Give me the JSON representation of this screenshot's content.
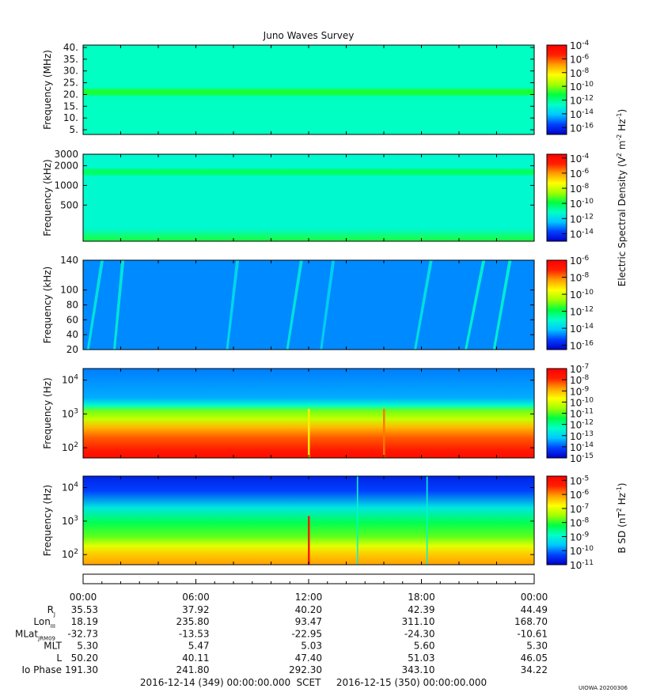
{
  "title": "Juno Waves Survey",
  "version_stamp": "UIOWA 20200306",
  "colors": {
    "cmap": [
      "#0000c8",
      "#0040ff",
      "#00c8ff",
      "#00ffc8",
      "#00ff40",
      "#a0ff00",
      "#ffff00",
      "#ffa000",
      "#ff2000",
      "#ff0000"
    ]
  },
  "shared_colorbar_label": "Electric Spectral Density (V^2 m^-2 Hz^-1)",
  "chart_data": [
    {
      "type": "heatmap",
      "panel": "HFR high band",
      "ylabel": "Frequency (MHz)",
      "y_scale": "linear",
      "ylim": [
        3,
        41
      ],
      "yticks": [
        "40.",
        "35.",
        "30.",
        "25.",
        "20.",
        "15.",
        "10.",
        "5."
      ],
      "ytick_values": [
        40,
        35,
        30,
        25,
        20,
        15,
        10,
        5
      ],
      "colorbar_ticks": [
        "10^-4",
        "10^-6",
        "10^-8",
        "10^-10",
        "10^-12",
        "10^-14",
        "10^-16"
      ],
      "colorbar_range": [
        -17,
        -4
      ],
      "background_level": -12.6,
      "features": [
        {
          "kind": "band",
          "freq": 21,
          "level": -11
        }
      ]
    },
    {
      "type": "heatmap",
      "panel": "HFR low band",
      "ylabel": "Frequency (kHz)",
      "y_scale": "log",
      "ylim": [
        140,
        3000
      ],
      "yticks": [
        "3000",
        "2000",
        "1000",
        "500"
      ],
      "ytick_values": [
        3000,
        2000,
        1000,
        500
      ],
      "colorbar_ticks": [
        "10^-4",
        "10^-6",
        "10^-8",
        "10^-10",
        "10^-12",
        "10^-14"
      ],
      "colorbar_range": [
        -15,
        -3.5
      ],
      "background_level": -11.3,
      "features": [
        {
          "kind": "band",
          "freq": 1600,
          "level": -10.2
        },
        {
          "kind": "floor",
          "below_freq": 220,
          "level": -9.7
        }
      ]
    },
    {
      "type": "heatmap",
      "panel": "LFR high",
      "ylabel": "Frequency (kHz)",
      "y_scale": "linear",
      "ylim": [
        20,
        140
      ],
      "yticks": [
        "140",
        "100",
        "80",
        "60",
        "40",
        "20"
      ],
      "ytick_values": [
        140,
        100,
        80,
        60,
        40,
        20
      ],
      "colorbar_ticks": [
        "10^-6",
        "10^-8",
        "10^-10",
        "10^-12",
        "10^-14",
        "10^-16"
      ],
      "colorbar_range": [
        -16.5,
        -6
      ],
      "background_level": -14.7,
      "features": [
        {
          "kind": "streak",
          "t_start_h": 0.2,
          "t_end_h": 1.1,
          "level": -13.3
        },
        {
          "kind": "streak",
          "t_start_h": 1.6,
          "t_end_h": 2.2,
          "level": -13.2
        },
        {
          "kind": "streak",
          "t_start_h": 7.6,
          "t_end_h": 8.3,
          "level": -13.6
        },
        {
          "kind": "streak",
          "t_start_h": 10.8,
          "t_end_h": 11.7,
          "level": -13.3
        },
        {
          "kind": "streak",
          "t_start_h": 12.6,
          "t_end_h": 13.4,
          "level": -13.8
        },
        {
          "kind": "streak",
          "t_start_h": 17.6,
          "t_end_h": 18.6,
          "level": -13.4
        },
        {
          "kind": "streak",
          "t_start_h": 20.3,
          "t_end_h": 21.4,
          "level": -13.0
        },
        {
          "kind": "streak",
          "t_start_h": 21.8,
          "t_end_h": 22.8,
          "level": -13.0
        }
      ]
    },
    {
      "type": "heatmap",
      "panel": "LFR low",
      "ylabel": "Frequency (Hz)",
      "y_scale": "log",
      "ylim": [
        50,
        22000
      ],
      "yticks": [
        "10^4",
        "10^3",
        "10^2"
      ],
      "ytick_values": [
        10000,
        1000,
        100
      ],
      "colorbar_ticks": [
        "10^-7",
        "10^-8",
        "10^-9",
        "10^-10",
        "10^-11",
        "10^-12",
        "10^-13",
        "10^-14",
        "10^-15"
      ],
      "colorbar_range": [
        -15,
        -7
      ],
      "profile": [
        {
          "freq": 20000,
          "level": -13.7
        },
        {
          "freq": 3000,
          "level": -13.4
        },
        {
          "freq": 1800,
          "level": -12.4
        },
        {
          "freq": 1200,
          "level": -10.8
        },
        {
          "freq": 700,
          "level": -10.2
        },
        {
          "freq": 400,
          "level": -9.0
        },
        {
          "freq": 200,
          "level": -8.3
        },
        {
          "freq": 80,
          "level": -7.6
        },
        {
          "freq": 50,
          "level": -7.4
        }
      ],
      "features": [
        {
          "kind": "spike",
          "t_h": 12.0,
          "level": -9.5
        },
        {
          "kind": "spike",
          "t_h": 16.0,
          "level": -8.5
        }
      ]
    },
    {
      "type": "heatmap",
      "panel": "Magnetic",
      "ylabel": "Frequency (Hz)",
      "y_scale": "log",
      "ylim": [
        50,
        22000
      ],
      "yticks": [
        "10^4",
        "10^3",
        "10^2"
      ],
      "ytick_values": [
        10000,
        1000,
        100
      ],
      "colorbar_ticks": [
        "10^-5",
        "10^-6",
        "10^-7",
        "10^-8",
        "10^-9",
        "10^-10",
        "10^-11"
      ],
      "colorbar_range": [
        -11,
        -4.7
      ],
      "colorbar_label": "B SD (nT^2 Hz^-1)",
      "profile": [
        {
          "freq": 20000,
          "level": -10.6
        },
        {
          "freq": 8000,
          "level": -10.3
        },
        {
          "freq": 2500,
          "level": -9.2
        },
        {
          "freq": 900,
          "level": -8.3
        },
        {
          "freq": 350,
          "level": -7.8
        },
        {
          "freq": 180,
          "level": -7.0
        },
        {
          "freq": 100,
          "level": -6.4
        },
        {
          "freq": 50,
          "level": -6.1
        }
      ],
      "features": [
        {
          "kind": "spike",
          "t_h": 12.0,
          "level": -5.3
        },
        {
          "kind": "line",
          "t_h": 14.6,
          "level": -9.0
        },
        {
          "kind": "line",
          "t_h": 18.3,
          "level": -9.0
        }
      ]
    }
  ],
  "ephemeris": {
    "time_labels": [
      "00:00",
      "06:00",
      "12:00",
      "18:00",
      "00:00"
    ],
    "time_hours": [
      0,
      6,
      12,
      18,
      24
    ],
    "rows": [
      {
        "label": "R",
        "sub": "J",
        "values": [
          "35.53",
          "37.92",
          "40.20",
          "42.39",
          "44.49"
        ]
      },
      {
        "label": "Lon",
        "sub": "III",
        "values": [
          "18.19",
          "235.80",
          "93.47",
          "311.10",
          "168.70"
        ]
      },
      {
        "label": "MLat",
        "sub": "JRM09",
        "values": [
          "-32.73",
          "-13.53",
          "-22.95",
          "-24.30",
          "-10.61"
        ]
      },
      {
        "label": "MLT",
        "sub": "",
        "values": [
          "5.30",
          "5.47",
          "5.03",
          "5.60",
          "5.30"
        ]
      },
      {
        "label": "L",
        "sub": "",
        "values": [
          "50.20",
          "40.11",
          "47.40",
          "51.03",
          "46.05"
        ]
      },
      {
        "label": "Io Phase",
        "sub": "",
        "values": [
          "191.30",
          "241.80",
          "292.30",
          "343.10",
          "34.22"
        ]
      }
    ],
    "start_label": "2016-12-14 (349) 00:00:00.000",
    "scet_label": "SCET",
    "end_label": "2016-12-15 (350) 00:00:00.000"
  }
}
